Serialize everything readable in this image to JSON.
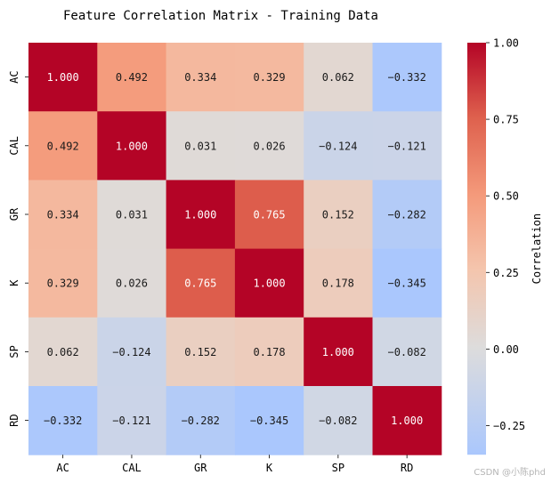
{
  "chart_data": {
    "type": "heatmap",
    "title": "Feature Correlation Matrix - Training Data",
    "row_labels": [
      "AC",
      "CAL",
      "GR",
      "K",
      "SP",
      "RD"
    ],
    "col_labels": [
      "AC",
      "CAL",
      "GR",
      "K",
      "SP",
      "RD"
    ],
    "values": [
      [
        1.0,
        0.492,
        0.334,
        0.329,
        0.062,
        -0.332
      ],
      [
        0.492,
        1.0,
        0.031,
        0.026,
        -0.124,
        -0.121
      ],
      [
        0.334,
        0.031,
        1.0,
        0.765,
        0.152,
        -0.282
      ],
      [
        0.329,
        0.026,
        0.765,
        1.0,
        0.178,
        -0.345
      ],
      [
        0.062,
        -0.124,
        0.152,
        0.178,
        1.0,
        -0.082
      ],
      [
        -0.332,
        -0.121,
        -0.282,
        -0.345,
        -0.082,
        1.0
      ]
    ],
    "colormap": "coolwarm",
    "vmin": -0.345,
    "vmax": 1.0,
    "colorbar": {
      "label": "Correlation",
      "ticks": [
        1.0,
        0.75,
        0.5,
        0.25,
        0.0,
        -0.25
      ],
      "tick_labels": [
        "1.00",
        "0.75",
        "0.50",
        "0.25",
        "0.00",
        "−0.25"
      ]
    }
  },
  "watermark": "CSDN @小陈phd"
}
